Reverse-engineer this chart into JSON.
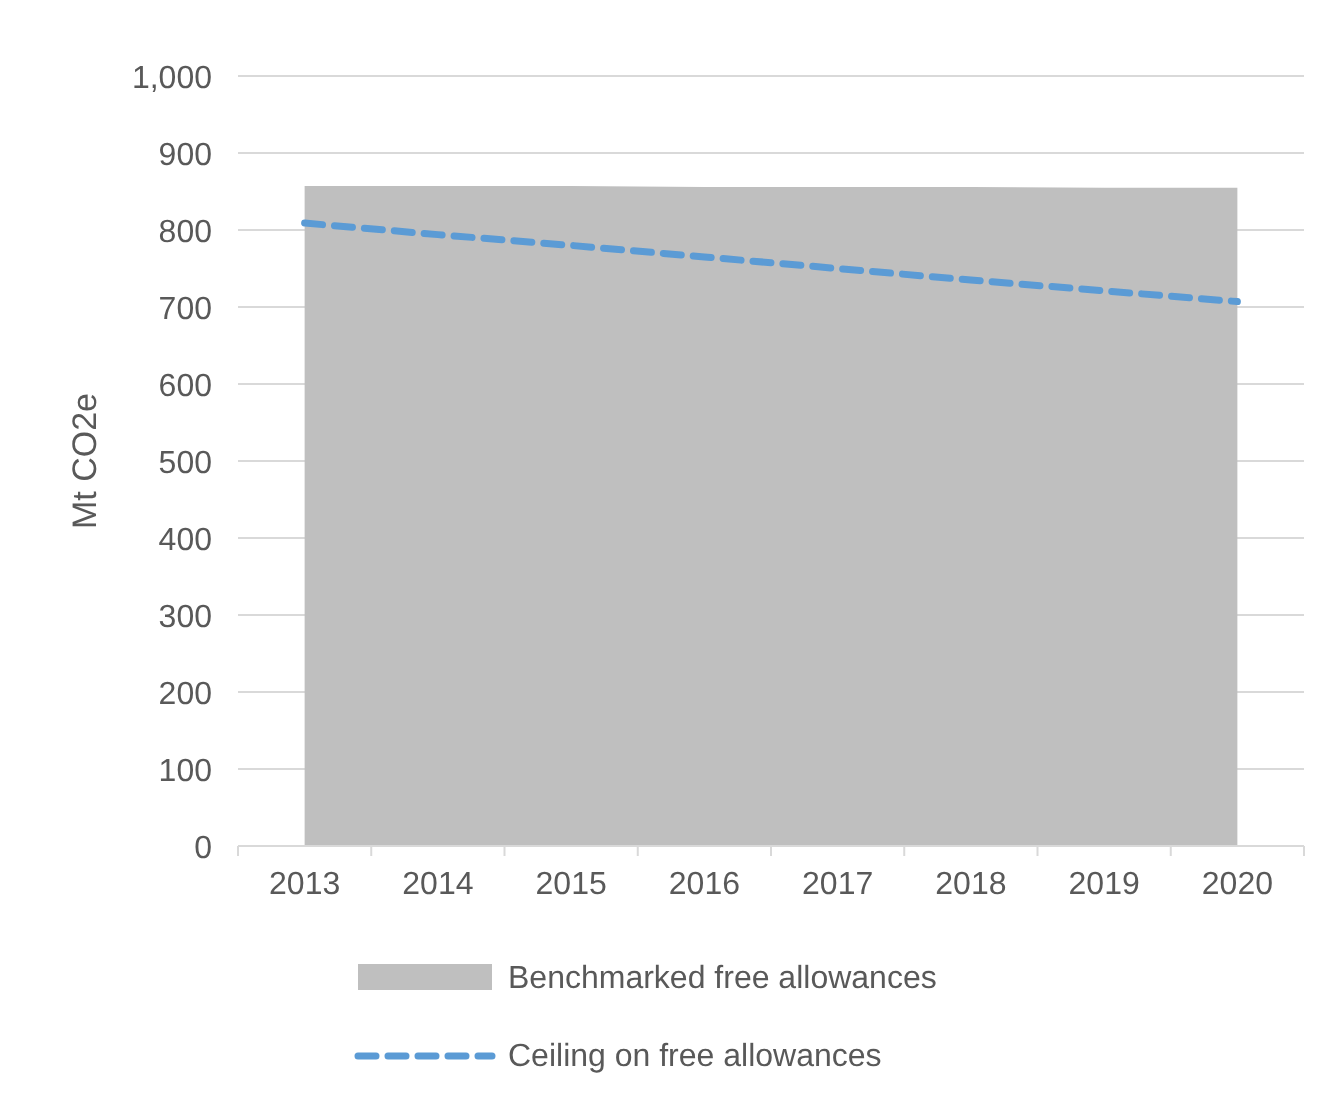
{
  "chart_data": {
    "type": "area",
    "ylabel": "Mt CO2e",
    "categories": [
      "2013",
      "2014",
      "2015",
      "2016",
      "2017",
      "2018",
      "2019",
      "2020"
    ],
    "series": [
      {
        "name": "Benchmarked free allowances",
        "color": "#bfbfbf",
        "values": [
          857,
          857,
          857,
          856,
          856,
          856,
          855,
          855
        ]
      },
      {
        "name": "Ceiling on free allowances",
        "type": "line",
        "color": "#5b9bd5",
        "line_style": "dashed",
        "values": [
          809,
          794,
          780,
          765,
          750,
          735,
          721,
          707
        ]
      }
    ],
    "ylim": [
      0,
      1000
    ],
    "yticks": [
      0,
      {
        "value": 100,
        "label": "100"
      },
      200,
      300,
      400,
      500,
      600,
      700,
      800,
      900,
      {
        "value": 1000,
        "label": "1,000"
      }
    ],
    "grid": "y",
    "legend": "bottom"
  }
}
